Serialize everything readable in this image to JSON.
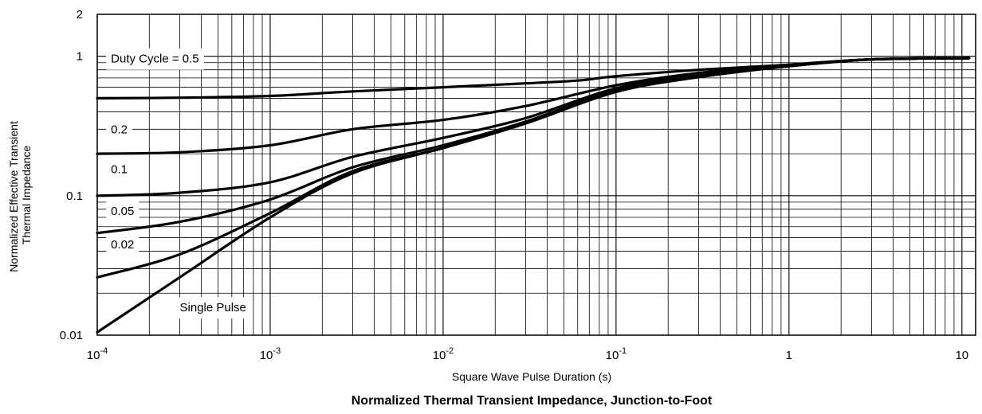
{
  "chart_data": {
    "type": "line",
    "title": "Normalized Thermal Transient Impedance, Junction-to-Foot",
    "xlabel": "Square Wave Pulse Duration (s)",
    "ylabel_lines": [
      "Normalized Effective Transient",
      "Thermal Impedance"
    ],
    "xscale": "log",
    "yscale": "log",
    "xlim": [
      0.0001,
      12
    ],
    "ylim": [
      0.01,
      2
    ],
    "grid": true,
    "x_ticks": [
      {
        "base": "10",
        "exp": "-4",
        "value": 0.0001
      },
      {
        "base": "10",
        "exp": "-3",
        "value": 0.001
      },
      {
        "base": "10",
        "exp": "-2",
        "value": 0.01
      },
      {
        "base": "10",
        "exp": "-1",
        "value": 0.1
      },
      {
        "base": "1",
        "exp": "",
        "value": 1
      },
      {
        "base": "10",
        "exp": "",
        "value": 10
      }
    ],
    "y_ticks": [
      {
        "label": "0.01",
        "value": 0.01
      },
      {
        "label": "0.1",
        "value": 0.1
      },
      {
        "label": "1",
        "value": 1
      },
      {
        "label": "2",
        "value": 2
      }
    ],
    "series": [
      {
        "name": "Duty Cycle = 0.5",
        "x": [
          0.0001,
          0.0003,
          0.001,
          0.003,
          0.01,
          0.03,
          0.06,
          0.1,
          0.3,
          1,
          3,
          11
        ],
        "y": [
          0.5,
          0.505,
          0.52,
          0.56,
          0.6,
          0.64,
          0.67,
          0.72,
          0.8,
          0.87,
          0.95,
          0.97
        ]
      },
      {
        "name": "0.2",
        "x": [
          0.0001,
          0.0003,
          0.001,
          0.003,
          0.01,
          0.03,
          0.1,
          0.3,
          1,
          3,
          11
        ],
        "y": [
          0.2,
          0.205,
          0.23,
          0.3,
          0.35,
          0.44,
          0.62,
          0.76,
          0.87,
          0.95,
          0.97
        ]
      },
      {
        "name": "0.1",
        "x": [
          0.0001,
          0.0003,
          0.001,
          0.003,
          0.01,
          0.03,
          0.1,
          0.3,
          1,
          3,
          11
        ],
        "y": [
          0.1,
          0.105,
          0.125,
          0.19,
          0.26,
          0.36,
          0.59,
          0.73,
          0.86,
          0.95,
          0.97
        ]
      },
      {
        "name": "0.05",
        "x": [
          0.0001,
          0.0003,
          0.001,
          0.003,
          0.01,
          0.03,
          0.1,
          0.3,
          1,
          3,
          11
        ],
        "y": [
          0.054,
          0.065,
          0.094,
          0.16,
          0.23,
          0.34,
          0.57,
          0.72,
          0.85,
          0.95,
          0.97
        ]
      },
      {
        "name": "0.02",
        "x": [
          0.0001,
          0.0003,
          0.001,
          0.003,
          0.01,
          0.03,
          0.1,
          0.3,
          1,
          3,
          11
        ],
        "y": [
          0.026,
          0.038,
          0.075,
          0.15,
          0.22,
          0.33,
          0.56,
          0.71,
          0.85,
          0.95,
          0.97
        ]
      },
      {
        "name": "Single Pulse",
        "x": [
          0.0001,
          0.0003,
          0.001,
          0.003,
          0.01,
          0.03,
          0.1,
          0.3,
          1,
          3,
          11
        ],
        "y": [
          0.0105,
          0.026,
          0.07,
          0.145,
          0.22,
          0.33,
          0.555,
          0.71,
          0.85,
          0.95,
          0.97
        ]
      }
    ]
  }
}
